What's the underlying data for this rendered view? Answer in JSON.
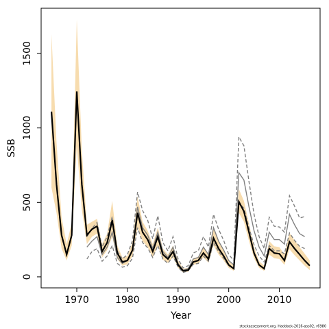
{
  "chart_data": {
    "type": "line",
    "xlabel": "Year",
    "ylabel": "SSB",
    "footnote": "stockassessment.org, Haddock-2016-ass02, r6980",
    "x": [
      1965,
      1966,
      1967,
      1968,
      1969,
      1970,
      1971,
      1972,
      1973,
      1974,
      1975,
      1976,
      1977,
      1978,
      1979,
      1980,
      1981,
      1982,
      1983,
      1984,
      1985,
      1986,
      1987,
      1988,
      1989,
      1990,
      1991,
      1992,
      1993,
      1994,
      1995,
      1996,
      1997,
      1998,
      1999,
      2000,
      2001,
      2002,
      2003,
      2004,
      2005,
      2006,
      2007,
      2008,
      2009,
      2010,
      2011,
      2012,
      2013,
      2014,
      2015,
      2016
    ],
    "band": {
      "color": "#f7dcae",
      "upper": [
        1630,
        900,
        400,
        220,
        360,
        1730,
        850,
        350,
        370,
        390,
        220,
        290,
        510,
        210,
        130,
        140,
        230,
        540,
        370,
        310,
        220,
        330,
        190,
        150,
        210,
        110,
        55,
        60,
        125,
        135,
        195,
        150,
        320,
        235,
        175,
        105,
        75,
        590,
        510,
        360,
        200,
        105,
        75,
        240,
        205,
        200,
        150,
        295,
        245,
        200,
        155,
        110
      ],
      "lower": [
        600,
        430,
        190,
        110,
        210,
        880,
        450,
        220,
        270,
        290,
        130,
        180,
        270,
        120,
        75,
        85,
        140,
        330,
        240,
        200,
        130,
        210,
        115,
        95,
        130,
        60,
        30,
        35,
        80,
        90,
        130,
        95,
        210,
        150,
        110,
        60,
        40,
        430,
        370,
        240,
        125,
        60,
        40,
        150,
        125,
        120,
        80,
        185,
        145,
        110,
        75,
        45
      ]
    },
    "series": [
      {
        "color": "#808080",
        "style": "dashed",
        "values": [
          null,
          null,
          null,
          null,
          null,
          null,
          null,
          270,
          325,
          365,
          200,
          270,
          405,
          175,
          120,
          150,
          245,
          570,
          445,
          380,
          255,
          410,
          230,
          175,
          270,
          120,
          60,
          75,
          160,
          175,
          270,
          200,
          420,
          320,
          245,
          150,
          110,
          940,
          880,
          640,
          420,
          270,
          190,
          400,
          340,
          335,
          300,
          545,
          475,
          395,
          405,
          null
        ]
      },
      {
        "color": "#808080",
        "style": "dashed",
        "values": [
          null,
          null,
          null,
          null,
          null,
          null,
          null,
          120,
          170,
          190,
          105,
          140,
          210,
          90,
          65,
          75,
          125,
          330,
          230,
          195,
          130,
          210,
          120,
          90,
          140,
          65,
          30,
          40,
          85,
          90,
          140,
          105,
          230,
          170,
          125,
          75,
          55,
          500,
          460,
          330,
          215,
          140,
          100,
          210,
          175,
          175,
          155,
          295,
          245,
          205,
          190,
          null
        ]
      },
      {
        "color": "#808080",
        "style": "solid",
        "values": [
          null,
          null,
          null,
          null,
          null,
          null,
          null,
          200,
          240,
          270,
          150,
          200,
          300,
          130,
          90,
          110,
          180,
          470,
          330,
          280,
          190,
          300,
          170,
          130,
          200,
          90,
          45,
          55,
          120,
          130,
          200,
          150,
          330,
          240,
          180,
          110,
          80,
          700,
          650,
          470,
          310,
          200,
          140,
          300,
          250,
          250,
          220,
          420,
          350,
          290,
          270,
          null
        ]
      },
      {
        "color": "#000000",
        "style": "solid",
        "values": [
          1110,
          620,
          280,
          150,
          280,
          1245,
          620,
          280,
          320,
          340,
          170,
          230,
          380,
          160,
          100,
          110,
          180,
          430,
          300,
          250,
          170,
          270,
          150,
          120,
          170,
          80,
          40,
          45,
          100,
          110,
          160,
          120,
          260,
          190,
          140,
          80,
          55,
          505,
          440,
          300,
          160,
          80,
          55,
          190,
          160,
          155,
          110,
          235,
          190,
          150,
          110,
          75
        ]
      }
    ],
    "xlim": [
      1962.96,
      2018.04
    ],
    "ylim": [
      -74,
      1804
    ],
    "xticks": [
      1970,
      1980,
      1990,
      2000,
      2010
    ],
    "yticks": [
      0,
      500,
      1000,
      1500
    ]
  }
}
